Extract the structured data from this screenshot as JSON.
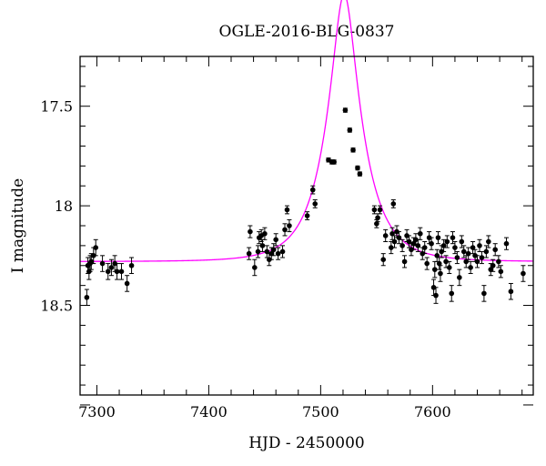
{
  "chart_data": {
    "type": "scatter",
    "title": "OGLE-2016-BLG-0837",
    "xlabel": "HJD - 2450000",
    "ylabel": "I magnitude",
    "xlim": [
      7285,
      7690
    ],
    "ylim": [
      18.95,
      17.25
    ],
    "y_inverted": true,
    "x_ticks_major": [
      7300,
      7400,
      7500,
      7600
    ],
    "y_ticks_major": [
      17.5,
      18,
      18.5
    ],
    "x_tick_labels": [
      "7300",
      "7400",
      "7500",
      "7600"
    ],
    "y_tick_labels": [
      "17.5",
      "18",
      "18.5"
    ],
    "grid": false,
    "legend": "none",
    "marker_color": "#000000",
    "model_color": "#ff00ff",
    "model": {
      "type": "paczynski",
      "t0": 7521,
      "tE": 32,
      "u0": 0.3,
      "baseline": 18.28,
      "blending_fs": 1.0
    },
    "series": [
      {
        "points": [
          [
            7291,
            18.46,
            0.04
          ],
          [
            7292,
            18.3,
            0.04
          ],
          [
            7293,
            18.33,
            0.04
          ],
          [
            7294,
            18.29,
            0.04
          ],
          [
            7295,
            18.28,
            0.04
          ],
          [
            7297,
            18.25,
            0.04
          ],
          [
            7299,
            18.21,
            0.04
          ],
          [
            7305,
            18.29,
            0.04
          ],
          [
            7310,
            18.33,
            0.04
          ],
          [
            7313,
            18.31,
            0.04
          ],
          [
            7316,
            18.29,
            0.04
          ],
          [
            7318,
            18.33,
            0.04
          ],
          [
            7322,
            18.33,
            0.04
          ],
          [
            7327,
            18.39,
            0.04
          ],
          [
            7331,
            18.3,
            0.04
          ],
          [
            7436,
            18.24,
            0.03
          ],
          [
            7437,
            18.13,
            0.03
          ],
          [
            7441,
            18.31,
            0.04
          ],
          [
            7444,
            18.23,
            0.03
          ],
          [
            7445,
            18.16,
            0.03
          ],
          [
            7447,
            18.15,
            0.03
          ],
          [
            7448,
            18.2,
            0.03
          ],
          [
            7450,
            18.14,
            0.03
          ],
          [
            7452,
            18.23,
            0.03
          ],
          [
            7454,
            18.27,
            0.03
          ],
          [
            7456,
            18.24,
            0.03
          ],
          [
            7458,
            18.22,
            0.03
          ],
          [
            7460,
            18.17,
            0.03
          ],
          [
            7462,
            18.24,
            0.03
          ],
          [
            7466,
            18.23,
            0.03
          ],
          [
            7468,
            18.12,
            0.03
          ],
          [
            7470,
            18.02,
            0.02
          ],
          [
            7472,
            18.1,
            0.03
          ],
          [
            7488,
            18.05,
            0.02
          ],
          [
            7493,
            17.92,
            0.02
          ],
          [
            7495,
            17.99,
            0.02
          ],
          [
            7507,
            17.77,
            0.01
          ],
          [
            7510,
            17.78,
            0.01
          ],
          [
            7512,
            17.78,
            0.01
          ],
          [
            7522,
            17.52,
            0.01
          ],
          [
            7526,
            17.62,
            0.01
          ],
          [
            7529,
            17.72,
            0.01
          ],
          [
            7533,
            17.81,
            0.01
          ],
          [
            7535,
            17.84,
            0.01
          ],
          [
            7548,
            18.02,
            0.02
          ],
          [
            7550,
            18.09,
            0.02
          ],
          [
            7551,
            18.06,
            0.02
          ],
          [
            7553,
            18.02,
            0.02
          ],
          [
            7556,
            18.27,
            0.03
          ],
          [
            7558,
            18.15,
            0.03
          ],
          [
            7563,
            18.21,
            0.03
          ],
          [
            7564,
            18.14,
            0.03
          ],
          [
            7565,
            17.99,
            0.02
          ],
          [
            7566,
            18.18,
            0.03
          ],
          [
            7568,
            18.13,
            0.03
          ],
          [
            7570,
            18.16,
            0.03
          ],
          [
            7573,
            18.2,
            0.03
          ],
          [
            7575,
            18.28,
            0.03
          ],
          [
            7577,
            18.15,
            0.03
          ],
          [
            7579,
            18.18,
            0.03
          ],
          [
            7581,
            18.22,
            0.03
          ],
          [
            7583,
            18.19,
            0.03
          ],
          [
            7585,
            18.17,
            0.03
          ],
          [
            7587,
            18.2,
            0.03
          ],
          [
            7589,
            18.14,
            0.03
          ],
          [
            7591,
            18.24,
            0.03
          ],
          [
            7593,
            18.21,
            0.03
          ],
          [
            7595,
            18.29,
            0.03
          ],
          [
            7597,
            18.16,
            0.03
          ],
          [
            7599,
            18.19,
            0.03
          ],
          [
            7601,
            18.41,
            0.04
          ],
          [
            7602,
            18.32,
            0.04
          ],
          [
            7603,
            18.45,
            0.04
          ],
          [
            7604,
            18.25,
            0.03
          ],
          [
            7605,
            18.16,
            0.03
          ],
          [
            7606,
            18.29,
            0.03
          ],
          [
            7607,
            18.34,
            0.04
          ],
          [
            7608,
            18.23,
            0.03
          ],
          [
            7610,
            18.2,
            0.03
          ],
          [
            7612,
            18.28,
            0.03
          ],
          [
            7613,
            18.18,
            0.03
          ],
          [
            7615,
            18.31,
            0.03
          ],
          [
            7617,
            18.44,
            0.04
          ],
          [
            7618,
            18.16,
            0.03
          ],
          [
            7620,
            18.21,
            0.03
          ],
          [
            7622,
            18.26,
            0.03
          ],
          [
            7624,
            18.36,
            0.04
          ],
          [
            7626,
            18.18,
            0.03
          ],
          [
            7628,
            18.23,
            0.03
          ],
          [
            7630,
            18.28,
            0.03
          ],
          [
            7632,
            18.24,
            0.03
          ],
          [
            7634,
            18.31,
            0.03
          ],
          [
            7636,
            18.21,
            0.03
          ],
          [
            7638,
            18.25,
            0.03
          ],
          [
            7640,
            18.28,
            0.03
          ],
          [
            7642,
            18.2,
            0.03
          ],
          [
            7644,
            18.26,
            0.03
          ],
          [
            7646,
            18.44,
            0.04
          ],
          [
            7648,
            18.23,
            0.03
          ],
          [
            7650,
            18.18,
            0.03
          ],
          [
            7652,
            18.32,
            0.03
          ],
          [
            7654,
            18.3,
            0.03
          ],
          [
            7656,
            18.22,
            0.03
          ],
          [
            7659,
            18.28,
            0.03
          ],
          [
            7661,
            18.33,
            0.03
          ],
          [
            7666,
            18.19,
            0.03
          ],
          [
            7670,
            18.43,
            0.04
          ],
          [
            7681,
            18.34,
            0.04
          ]
        ]
      }
    ]
  }
}
